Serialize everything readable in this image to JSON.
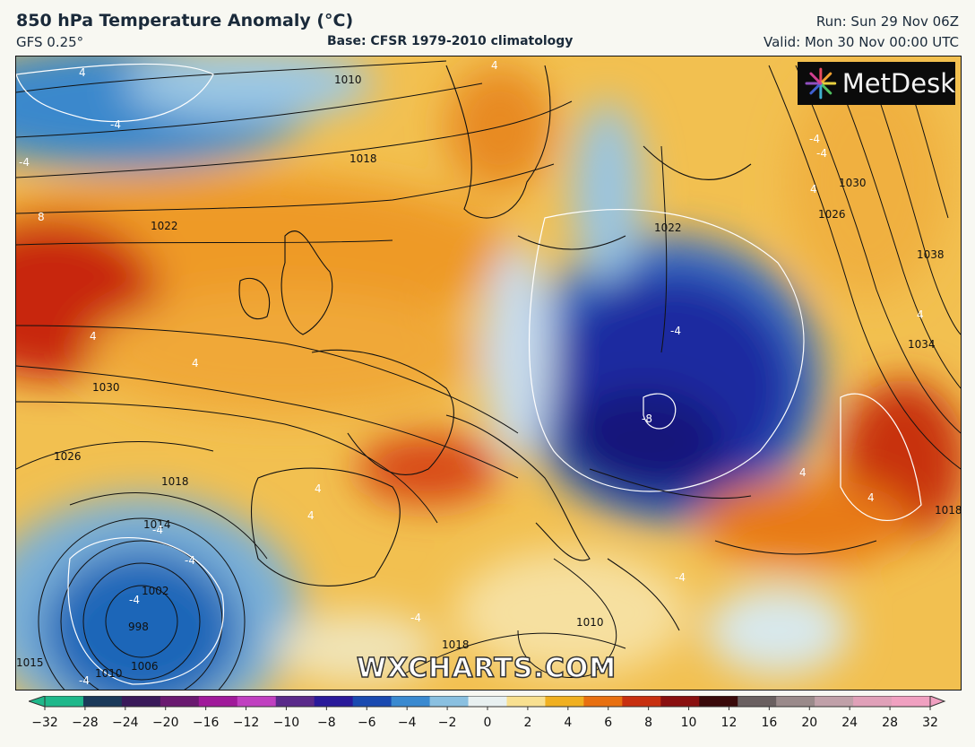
{
  "header": {
    "title": "850 hPa Temperature Anomaly (°C)",
    "model": "GFS 0.25°",
    "base": "Base: CFSR 1979-2010 climatology",
    "run": "Run: Sun 29 Nov 06Z",
    "valid": "Valid: Mon 30 Nov 00:00 UTC"
  },
  "branding": {
    "logo": "MetDesk",
    "watermark": "WXCHARTS.COM"
  },
  "colorbar": {
    "ticks": [
      "−32",
      "−28",
      "−24",
      "−20",
      "−16",
      "−12",
      "−10",
      "−8",
      "−6",
      "−4",
      "−2",
      "0",
      "2",
      "4",
      "6",
      "8",
      "10",
      "12",
      "16",
      "20",
      "24",
      "28",
      "32"
    ],
    "colors": [
      "#1fb88a",
      "#1b3a5a",
      "#3a1a5a",
      "#6a1a70",
      "#a01a9a",
      "#c040c0",
      "#5a2a8a",
      "#2a1a9a",
      "#1a4ab0",
      "#3a8ad0",
      "#8ac0e0",
      "#e8f0f0",
      "#f8e090",
      "#f0b020",
      "#e87010",
      "#c83010",
      "#8a1010",
      "#3a0a0a",
      "#6a6060",
      "#9a8a8a",
      "#c0a0a8",
      "#e0a0b8",
      "#f0a0c0"
    ]
  },
  "pressure_labels": [
    "1010",
    "1018",
    "1022",
    "1030",
    "1026",
    "1018",
    "1014",
    "1002",
    "998",
    "1006",
    "1010",
    "1018",
    "1010",
    "1022",
    "1026",
    "1030",
    "1038",
    "1034",
    "1018",
    "1015"
  ],
  "anomaly_labels": [
    "4",
    "-4",
    "-4",
    "4",
    "8",
    "4",
    "-4",
    "-4",
    "-4",
    "-4",
    "4",
    "-4",
    "-4",
    "4",
    "-4",
    "-8",
    "4",
    "4",
    "4",
    "4",
    "4",
    "-4",
    "-4"
  ],
  "colors": {
    "cold_core": "#1a1a8a",
    "warm": "#f0a030",
    "hot": "#c81a10"
  }
}
